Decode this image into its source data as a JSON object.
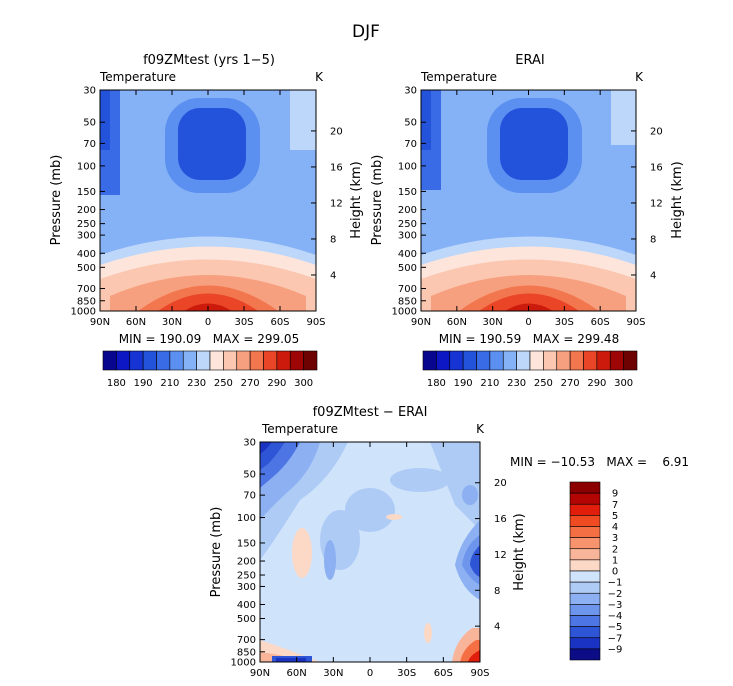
{
  "figure": {
    "title": "DJF"
  },
  "chart_data": [
    {
      "type": "heatmap",
      "title": "f09ZMtest (yrs 1−5)",
      "field_label": "Temperature",
      "units": "K",
      "ylabel": "Pressure (mb)",
      "y2label": "Height (km)",
      "x_ticks": [
        "90N",
        "60N",
        "30N",
        "0",
        "30S",
        "60S",
        "90S"
      ],
      "y_ticks": [
        "30",
        "50",
        "70",
        "100",
        "150",
        "200",
        "250",
        "300",
        "400",
        "500",
        "700",
        "850",
        "1000"
      ],
      "y2_ticks": [
        "20",
        "16",
        "12",
        "8",
        "4"
      ],
      "stats": "MIN = 190.09   MAX = 299.05",
      "min": 190.09,
      "max": 299.05,
      "colorbar_levels": [
        "180",
        "190",
        "210",
        "230",
        "250",
        "270",
        "290",
        "300"
      ],
      "colorbar_orientation": "horizontal"
    },
    {
      "type": "heatmap",
      "title": "ERAI",
      "field_label": "Temperature",
      "units": "K",
      "ylabel": "Pressure (mb)",
      "y2label": "Height (km)",
      "x_ticks": [
        "90N",
        "60N",
        "30N",
        "0",
        "30S",
        "60S",
        "90S"
      ],
      "y_ticks": [
        "30",
        "50",
        "70",
        "100",
        "150",
        "200",
        "250",
        "300",
        "400",
        "500",
        "700",
        "850",
        "1000"
      ],
      "y2_ticks": [
        "20",
        "16",
        "12",
        "8",
        "4"
      ],
      "stats": "MIN = 190.59   MAX = 299.48",
      "min": 190.59,
      "max": 299.48,
      "colorbar_levels": [
        "180",
        "190",
        "210",
        "230",
        "250",
        "270",
        "290",
        "300"
      ],
      "colorbar_orientation": "horizontal"
    },
    {
      "type": "heatmap",
      "title": "f09ZMtest − ERAI",
      "field_label": "Temperature",
      "units": "K",
      "ylabel": "Pressure (mb)",
      "y2label": "Height (km)",
      "x_ticks": [
        "90N",
        "60N",
        "30N",
        "0",
        "30S",
        "60S",
        "90S"
      ],
      "y_ticks": [
        "30",
        "50",
        "70",
        "100",
        "150",
        "200",
        "250",
        "300",
        "400",
        "500",
        "700",
        "850",
        "1000"
      ],
      "y2_ticks": [
        "20",
        "16",
        "12",
        "8",
        "4"
      ],
      "stats": "MIN = −10.53   MAX =    6.91",
      "min": -10.53,
      "max": 6.91,
      "colorbar_levels": [
        "9",
        "7",
        "5",
        "4",
        "3",
        "2",
        "1",
        "0",
        "−1",
        "−2",
        "−3",
        "−4",
        "−5",
        "−7",
        "−9"
      ],
      "colorbar_orientation": "vertical"
    }
  ],
  "colors": {
    "abs_scale": [
      "#08068f",
      "#0d18c4",
      "#1633d4",
      "#2453db",
      "#3a6be6",
      "#5b8ff0",
      "#85b1f6",
      "#bcd7fa",
      "#fde5dc",
      "#fbc7b1",
      "#f7a07f",
      "#f2764e",
      "#e94526",
      "#cc1b0c",
      "#9e0606",
      "#6e0202"
    ],
    "diff_scale": [
      "#8b0101",
      "#b40505",
      "#e11d0c",
      "#f04a22",
      "#f56f45",
      "#f7946e",
      "#f9b59a",
      "#fcd9c6",
      "#cfe3fb",
      "#aecbf6",
      "#8cb0f1",
      "#6e95ec",
      "#4d76e4",
      "#2e55d6",
      "#1b33c2",
      "#0b0c86"
    ]
  }
}
